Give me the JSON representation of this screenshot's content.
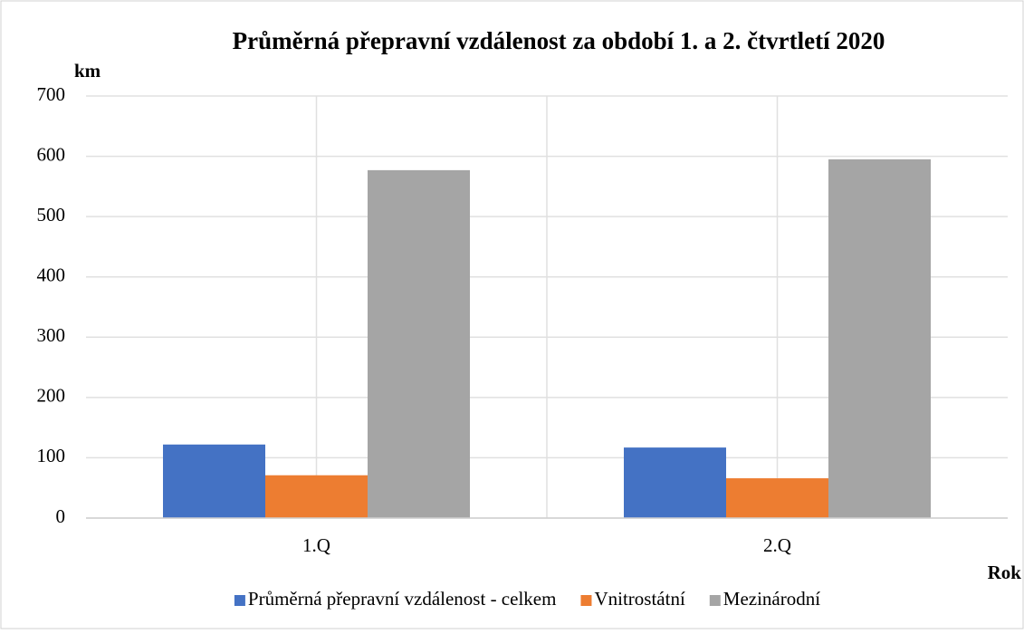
{
  "chart_data": {
    "type": "bar",
    "title": "Průměrná přepravní vzdálenost za období 1. a 2. čtvrtletí 2020",
    "y_label": "km",
    "x_label": "Rok",
    "categories": [
      "1.Q",
      "2.Q"
    ],
    "series": [
      {
        "name": "Průměrná přepravní vzdálenost - celkem",
        "color": "#4472c4",
        "values": [
          122,
          117
        ]
      },
      {
        "name": "Vnitrostátní",
        "color": "#ed7d31",
        "values": [
          71,
          66
        ]
      },
      {
        "name": "Mezinárodní",
        "color": "#a5a5a5",
        "values": [
          577,
          595
        ]
      }
    ],
    "ylim": [
      0,
      700
    ],
    "yticks": [
      0,
      100,
      200,
      300,
      400,
      500,
      600,
      700
    ],
    "grid": true,
    "legend": "bottom"
  }
}
